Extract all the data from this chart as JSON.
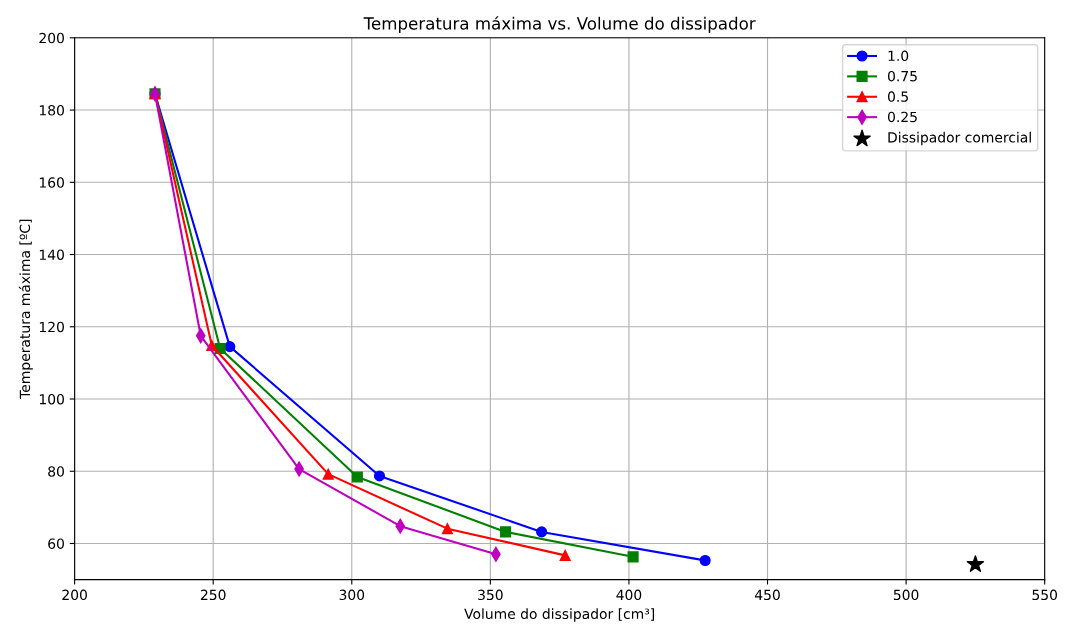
{
  "chart_data": {
    "type": "line",
    "title": "Temperatura máxima vs. Volume do dissipador",
    "xlabel": "Volume do dissipador [cm³]",
    "ylabel": "Temperatura máxima [ºC]",
    "series": [
      {
        "name": "1.0",
        "color": "#0000ff",
        "marker": "circle",
        "x": [
          229,
          256,
          310,
          368.5,
          427.5
        ],
        "values": [
          184.5,
          114.5,
          78.7,
          63.2,
          55.3
        ]
      },
      {
        "name": "0.75",
        "color": "#008000",
        "marker": "square",
        "x": [
          229,
          252.5,
          302,
          355.5,
          401.5
        ],
        "values": [
          184.5,
          114,
          78.4,
          63.2,
          56.3
        ]
      },
      {
        "name": "0.5",
        "color": "#ff0000",
        "marker": "triangle",
        "x": [
          229,
          249.5,
          291.5,
          334.5,
          377
        ],
        "values": [
          184.5,
          114.8,
          79.2,
          64.1,
          56.7
        ]
      },
      {
        "name": "0.25",
        "color": "#bf00bf",
        "marker": "diamond",
        "x": [
          229,
          245.5,
          281,
          317.5,
          352
        ],
        "values": [
          184.5,
          117.5,
          80.6,
          64.8,
          57
        ]
      },
      {
        "name": "Dissipador comercial",
        "type": "scatter",
        "color": "#000000",
        "marker": "star",
        "x": [
          525
        ],
        "values": [
          54.2
        ]
      }
    ],
    "xlim": [
      200,
      550
    ],
    "ylim": [
      50,
      200
    ],
    "xticks": [
      200,
      250,
      300,
      350,
      400,
      450,
      500,
      550
    ],
    "yticks": [
      60,
      80,
      100,
      120,
      140,
      160,
      180,
      200
    ],
    "grid": true,
    "legend": "top right",
    "line_style": "solid"
  }
}
